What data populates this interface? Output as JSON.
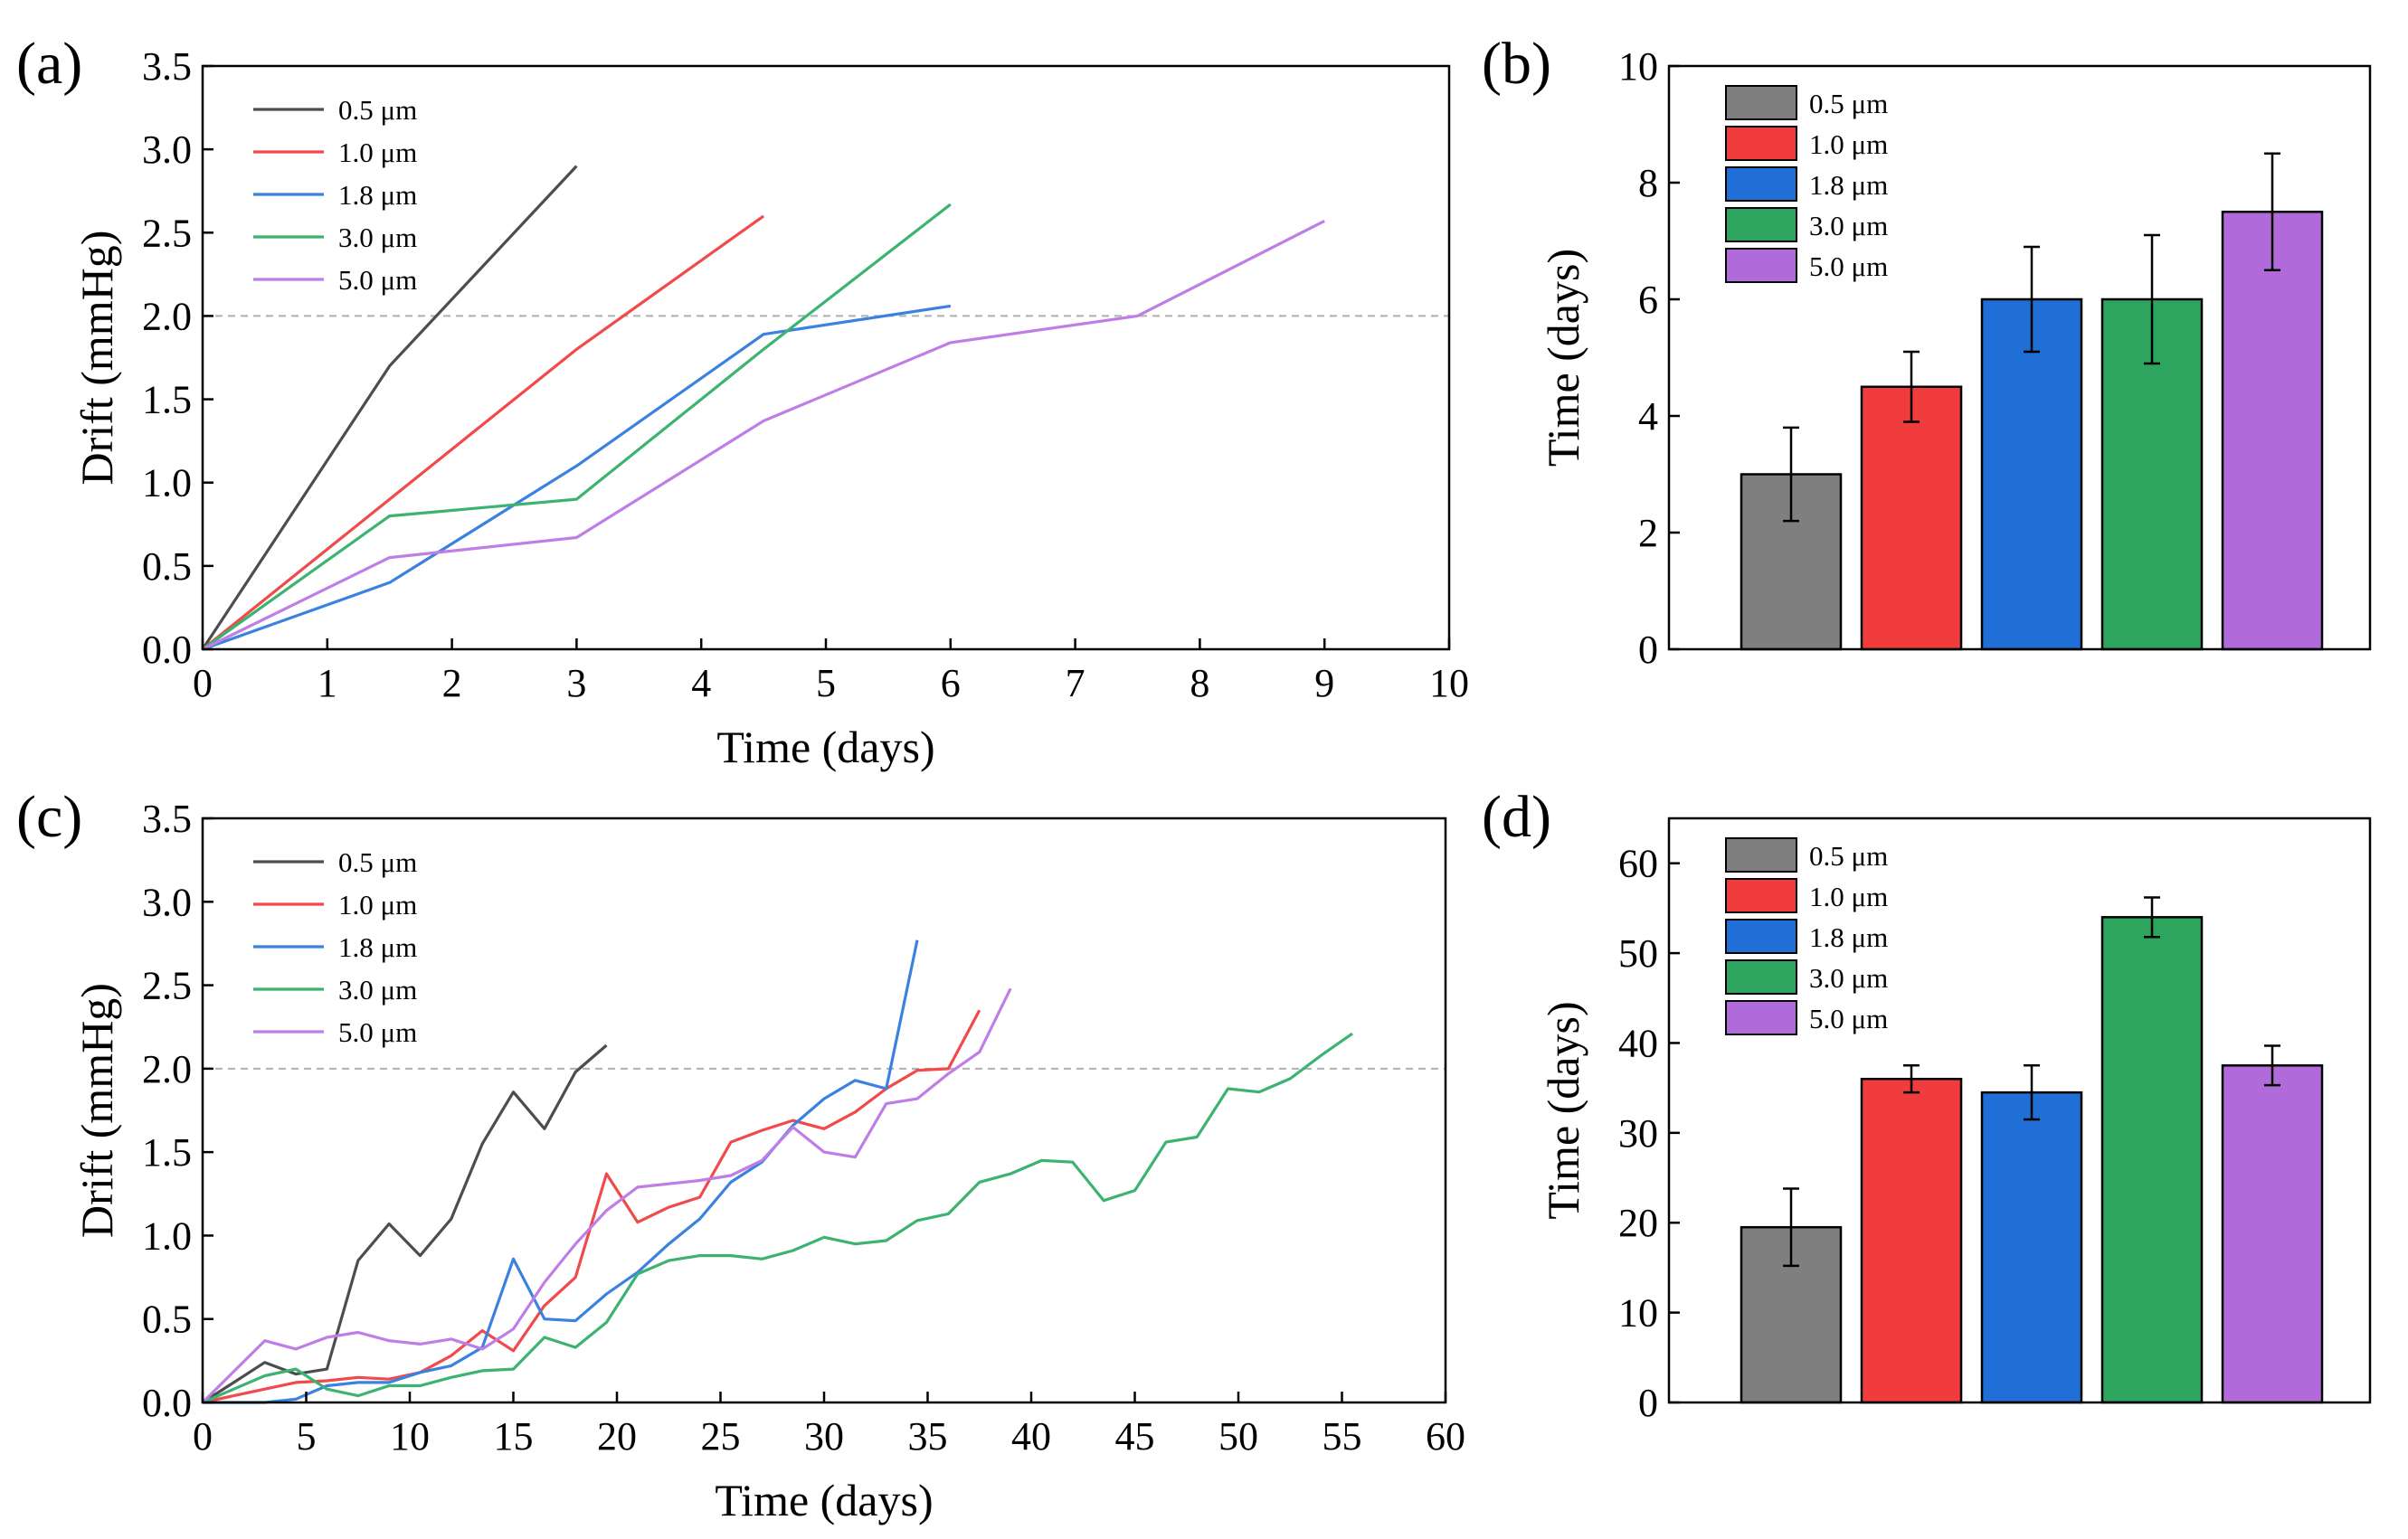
{
  "panels": [
    {
      "label": "(a)"
    },
    {
      "label": "(b)"
    },
    {
      "label": "(c)"
    },
    {
      "label": "(d)"
    }
  ],
  "chart_data": [
    {
      "type": "line",
      "panel": "(a)",
      "xlabel": "Time (days)",
      "ylabel": "Drift (mmHg)",
      "xlim": [
        0,
        10
      ],
      "ylim": [
        0,
        3.5
      ],
      "xticks": [
        "0",
        "1",
        "2",
        "3",
        "4",
        "5",
        "6",
        "7",
        "8",
        "9",
        "10"
      ],
      "yticks": [
        "0.0",
        "0.5",
        "1.0",
        "1.5",
        "2.0",
        "2.5",
        "3.0",
        "3.5"
      ],
      "reference_line": 2.0,
      "legend_position": "top-left",
      "series": [
        {
          "name": "0.5 μm",
          "color": "#4d4d4d",
          "points": [
            [
              0,
              0
            ],
            [
              1.5,
              1.7
            ],
            [
              3,
              2.9
            ]
          ]
        },
        {
          "name": "1.0 μm",
          "color": "#f04a4a",
          "points": [
            [
              0,
              0
            ],
            [
              1.5,
              0.9
            ],
            [
              3,
              1.8
            ],
            [
              4.5,
              2.6
            ]
          ]
        },
        {
          "name": "1.8 μm",
          "color": "#3b82e0",
          "points": [
            [
              0,
              0
            ],
            [
              1.5,
              0.4
            ],
            [
              3,
              1.1
            ],
            [
              4.5,
              1.89
            ],
            [
              6,
              2.06
            ]
          ]
        },
        {
          "name": "3.0 μm",
          "color": "#3cb371",
          "points": [
            [
              0,
              0
            ],
            [
              1.5,
              0.8
            ],
            [
              3,
              0.9
            ],
            [
              4.5,
              1.8
            ],
            [
              6,
              2.67
            ]
          ]
        },
        {
          "name": "5.0 μm",
          "color": "#bf7de6",
          "points": [
            [
              0,
              0
            ],
            [
              1.5,
              0.55
            ],
            [
              3,
              0.67
            ],
            [
              4.5,
              1.37
            ],
            [
              6,
              1.84
            ],
            [
              7.5,
              2.0
            ],
            [
              9,
              2.57
            ]
          ]
        }
      ]
    },
    {
      "type": "bar",
      "panel": "(b)",
      "xlabel": "",
      "ylabel": "Time (days)",
      "ylim": [
        0,
        10
      ],
      "yticks": [
        "0",
        "2",
        "4",
        "6",
        "8",
        "10"
      ],
      "legend_position": "top-left",
      "categories": [
        "0.5 μm",
        "1.0 μm",
        "1.8 μm",
        "3.0 μm",
        "5.0 μm"
      ],
      "values": [
        3.0,
        4.5,
        6.0,
        6.0,
        7.5
      ],
      "errors": [
        0.8,
        0.6,
        0.9,
        1.1,
        1.0
      ],
      "colors": [
        "#7f7f7f",
        "#f03c3c",
        "#1f6fd6",
        "#2ea55e",
        "#b06ad9"
      ]
    },
    {
      "type": "line",
      "panel": "(c)",
      "xlabel": "Time (days)",
      "ylabel": "Drift (mmHg)",
      "xlim": [
        0,
        60
      ],
      "ylim": [
        0,
        3.5
      ],
      "xticks": [
        "0",
        "5",
        "10",
        "15",
        "20",
        "25",
        "30",
        "35",
        "40",
        "45",
        "50",
        "55",
        "60"
      ],
      "yticks": [
        "0.0",
        "0.5",
        "1.0",
        "1.5",
        "2.0",
        "2.5",
        "3.0",
        "3.5"
      ],
      "reference_line": 2.0,
      "legend_position": "top-left",
      "series": [
        {
          "name": "0.5 μm",
          "color": "#4d4d4d",
          "points": [
            [
              0,
              0
            ],
            [
              1.5,
              0.12
            ],
            [
              3,
              0.24
            ],
            [
              4.5,
              0.17
            ],
            [
              6,
              0.2
            ],
            [
              7.5,
              0.85
            ],
            [
              9,
              1.07
            ],
            [
              10.5,
              0.88
            ],
            [
              12,
              1.1
            ],
            [
              13.5,
              1.55
            ],
            [
              15,
              1.86
            ],
            [
              16.5,
              1.64
            ],
            [
              18,
              1.98
            ],
            [
              19.5,
              2.14
            ]
          ]
        },
        {
          "name": "1.0 μm",
          "color": "#f04a4a",
          "points": [
            [
              0,
              0
            ],
            [
              3,
              0.08
            ],
            [
              4.5,
              0.12
            ],
            [
              6,
              0.13
            ],
            [
              7.5,
              0.15
            ],
            [
              9,
              0.14
            ],
            [
              10.5,
              0.18
            ],
            [
              12,
              0.28
            ],
            [
              13.5,
              0.43
            ],
            [
              15,
              0.31
            ],
            [
              16.5,
              0.58
            ],
            [
              18,
              0.75
            ],
            [
              19.5,
              1.37
            ],
            [
              21,
              1.08
            ],
            [
              22.5,
              1.17
            ],
            [
              24,
              1.23
            ],
            [
              25.5,
              1.56
            ],
            [
              27,
              1.63
            ],
            [
              28.5,
              1.69
            ],
            [
              30,
              1.64
            ],
            [
              31.5,
              1.74
            ],
            [
              33,
              1.88
            ],
            [
              34.5,
              1.99
            ],
            [
              36,
              2.0
            ],
            [
              37.5,
              2.35
            ]
          ]
        },
        {
          "name": "1.8 μm",
          "color": "#3b82e0",
          "points": [
            [
              0,
              0
            ],
            [
              3,
              0.0
            ],
            [
              4.5,
              0.02
            ],
            [
              6,
              0.1
            ],
            [
              7.5,
              0.12
            ],
            [
              9,
              0.12
            ],
            [
              10.5,
              0.18
            ],
            [
              12,
              0.22
            ],
            [
              13.5,
              0.33
            ],
            [
              15,
              0.86
            ],
            [
              16.5,
              0.5
            ],
            [
              18,
              0.49
            ],
            [
              19.5,
              0.65
            ],
            [
              21,
              0.78
            ],
            [
              22.5,
              0.95
            ],
            [
              24,
              1.1
            ],
            [
              25.5,
              1.32
            ],
            [
              27,
              1.44
            ],
            [
              28.5,
              1.66
            ],
            [
              30,
              1.82
            ],
            [
              31.5,
              1.93
            ],
            [
              33,
              1.88
            ],
            [
              34.5,
              2.77
            ]
          ]
        },
        {
          "name": "3.0 μm",
          "color": "#3cb371",
          "points": [
            [
              0,
              0
            ],
            [
              3,
              0.16
            ],
            [
              4.5,
              0.2
            ],
            [
              6,
              0.08
            ],
            [
              7.5,
              0.04
            ],
            [
              9,
              0.1
            ],
            [
              10.5,
              0.1
            ],
            [
              12,
              0.15
            ],
            [
              13.5,
              0.19
            ],
            [
              15,
              0.2
            ],
            [
              16.5,
              0.39
            ],
            [
              18,
              0.33
            ],
            [
              19.5,
              0.48
            ],
            [
              21,
              0.77
            ],
            [
              22.5,
              0.85
            ],
            [
              24,
              0.88
            ],
            [
              25.5,
              0.88
            ],
            [
              27,
              0.86
            ],
            [
              28.5,
              0.91
            ],
            [
              30,
              0.99
            ],
            [
              31.5,
              0.95
            ],
            [
              33,
              0.97
            ],
            [
              34.5,
              1.09
            ],
            [
              36,
              1.13
            ],
            [
              37.5,
              1.32
            ],
            [
              39,
              1.37
            ],
            [
              40.5,
              1.45
            ],
            [
              42,
              1.44
            ],
            [
              43.5,
              1.21
            ],
            [
              45,
              1.27
            ],
            [
              46.5,
              1.56
            ],
            [
              48,
              1.59
            ],
            [
              49.5,
              1.88
            ],
            [
              51,
              1.86
            ],
            [
              52.5,
              1.94
            ],
            [
              54,
              2.08
            ],
            [
              55.5,
              2.21
            ]
          ]
        },
        {
          "name": "5.0 μm",
          "color": "#bf7de6",
          "points": [
            [
              0,
              0
            ],
            [
              3,
              0.37
            ],
            [
              4.5,
              0.32
            ],
            [
              6,
              0.39
            ],
            [
              7.5,
              0.42
            ],
            [
              9,
              0.37
            ],
            [
              10.5,
              0.35
            ],
            [
              12,
              0.38
            ],
            [
              13.5,
              0.32
            ],
            [
              15,
              0.44
            ],
            [
              16.5,
              0.72
            ],
            [
              18,
              0.95
            ],
            [
              19.5,
              1.15
            ],
            [
              21,
              1.29
            ],
            [
              22.5,
              1.31
            ],
            [
              24,
              1.33
            ],
            [
              25.5,
              1.36
            ],
            [
              27,
              1.45
            ],
            [
              28.5,
              1.65
            ],
            [
              30,
              1.5
            ],
            [
              31.5,
              1.47
            ],
            [
              33,
              1.79
            ],
            [
              34.5,
              1.82
            ],
            [
              36,
              1.97
            ],
            [
              37.5,
              2.1
            ],
            [
              39,
              2.48
            ]
          ]
        }
      ]
    },
    {
      "type": "bar",
      "panel": "(d)",
      "xlabel": "",
      "ylabel": "Time (days)",
      "ylim": [
        0,
        65
      ],
      "yticks": [
        "0",
        "10",
        "20",
        "30",
        "40",
        "50",
        "60"
      ],
      "legend_position": "top-left",
      "categories": [
        "0.5 μm",
        "1.0 μm",
        "1.8 μm",
        "3.0 μm",
        "5.0 μm"
      ],
      "values": [
        19.5,
        36.0,
        34.5,
        54.0,
        37.5
      ],
      "errors": [
        4.3,
        1.5,
        3.0,
        2.2,
        2.2
      ],
      "colors": [
        "#7f7f7f",
        "#f03c3c",
        "#1f6fd6",
        "#2ea55e",
        "#b06ad9"
      ]
    }
  ]
}
